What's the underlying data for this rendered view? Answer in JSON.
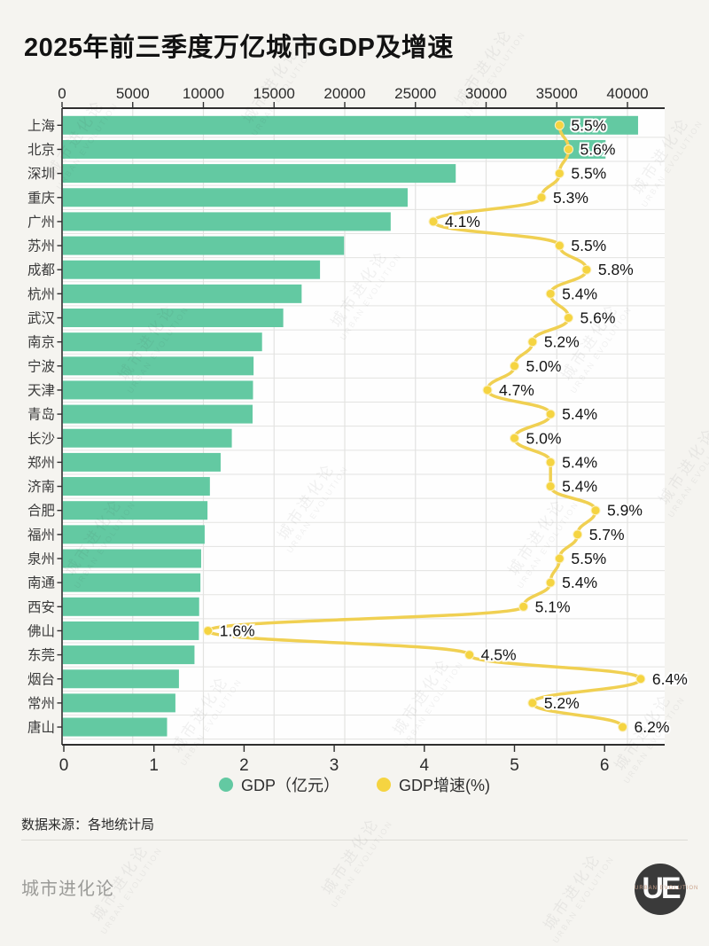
{
  "title": "2025年前三季度万亿城市GDP及增速",
  "legend": {
    "gdp_label": "GDP（亿元）",
    "growth_label": "GDP增速(%)"
  },
  "source": "数据来源：各地统计局",
  "footer": {
    "brand": "城市进化论",
    "logo_text": "UE",
    "logo_caption": "URBAN EVOLUTION"
  },
  "watermark": {
    "line1": "城市进化论",
    "line2": "URBAN EVOLUTION"
  },
  "colors": {
    "background": "#f5f4f0",
    "plot_background": "#fefefe",
    "bar": "#63c9a2",
    "line": "#f0d052",
    "dot": "#f5d441",
    "grid": "#e3e3e1",
    "spine": "#2f2f2f",
    "axis_text": "#2b2b2b",
    "city_text": "#3a3a3a",
    "value_text": "#141414"
  },
  "chart_data": {
    "type": "bar",
    "subtype": "horizontal-bar-with-line-overlay",
    "title": "2025年前三季度万亿城市GDP及增速",
    "categories": [
      "上海",
      "北京",
      "深圳",
      "重庆",
      "广州",
      "苏州",
      "成都",
      "杭州",
      "武汉",
      "南京",
      "宁波",
      "天津",
      "青岛",
      "长沙",
      "郑州",
      "济南",
      "合肥",
      "福州",
      "泉州",
      "南通",
      "西安",
      "佛山",
      "东莞",
      "烟台",
      "常州",
      "唐山"
    ],
    "series": [
      {
        "name": "GDP（亿元）",
        "type": "bar",
        "axis": "top",
        "values": [
          40700,
          38400,
          27800,
          24400,
          23200,
          19900,
          18200,
          16900,
          15600,
          14100,
          13500,
          13460,
          13430,
          11960,
          11170,
          10410,
          10240,
          10040,
          9790,
          9740,
          9650,
          9630,
          9320,
          8220,
          7970,
          7380
        ]
      },
      {
        "name": "GDP增速(%)",
        "type": "line",
        "axis": "bottom",
        "values": [
          5.5,
          5.6,
          5.5,
          5.3,
          4.1,
          5.5,
          5.8,
          5.4,
          5.6,
          5.2,
          5.0,
          4.7,
          5.4,
          5.0,
          5.4,
          5.4,
          5.9,
          5.7,
          5.5,
          5.4,
          5.1,
          1.6,
          4.5,
          6.4,
          5.2,
          6.2
        ]
      }
    ],
    "top_axis": {
      "label": "GDP（亿元）",
      "ticks": [
        0,
        5000,
        10000,
        15000,
        20000,
        25000,
        30000,
        35000,
        40000
      ],
      "range": [
        0,
        42650
      ]
    },
    "bottom_axis": {
      "label": "GDP增速(%)",
      "ticks": [
        0,
        1,
        2,
        3,
        4,
        5,
        6
      ],
      "range": [
        0,
        6.67
      ]
    },
    "grid": "vertical-on-top-axis-plus-row-dividers",
    "legend_position": "bottom-center",
    "value_labels": "growth-percent-right-of-dot"
  }
}
